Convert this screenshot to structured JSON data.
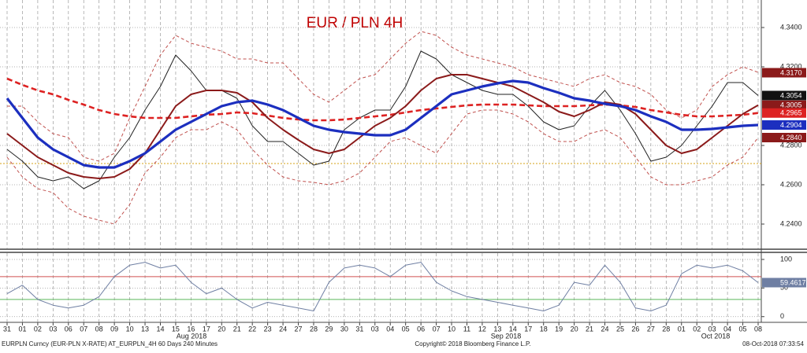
{
  "chart_data": [
    {
      "type": "line",
      "title": "EUR / PLN 4H",
      "categories": [
        "31",
        "01",
        "02",
        "03",
        "06",
        "07",
        "08",
        "09",
        "10",
        "13",
        "14",
        "15",
        "16",
        "17",
        "20",
        "21",
        "22",
        "23",
        "24",
        "27",
        "28",
        "29",
        "30",
        "31",
        "03",
        "04",
        "05",
        "06",
        "07",
        "10",
        "11",
        "12",
        "13",
        "14",
        "17",
        "18",
        "19",
        "20",
        "21",
        "24",
        "25",
        "26",
        "27",
        "28",
        "01",
        "02",
        "03",
        "04",
        "05",
        "08"
      ],
      "months": [
        "Aug 2018",
        "Sep 2018",
        "Oct 2018"
      ],
      "ylim": [
        4.2276,
        4.354
      ],
      "yticks": [
        {
          "value": 4.24,
          "label": "4.2400"
        },
        {
          "value": 4.26,
          "label": "4.2600"
        },
        {
          "value": 4.28,
          "label": "4.2800"
        },
        {
          "value": 4.32,
          "label": "4.3200"
        },
        {
          "value": 4.34,
          "label": "4.3400"
        }
      ],
      "grid": true,
      "hline": {
        "value": 4.2708,
        "color": "#d4a017"
      },
      "series": [
        {
          "color": "#c0504d",
          "line_style": "dotted-band",
          "values": [
            4.3,
            4.3,
            4.292,
            4.286,
            4.284,
            4.274,
            4.272,
            4.276,
            4.294,
            4.31,
            4.326,
            4.336,
            4.332,
            4.33,
            4.328,
            4.324,
            4.324,
            4.322,
            4.322,
            4.314,
            4.306,
            4.302,
            4.308,
            4.314,
            4.316,
            4.324,
            4.332,
            4.338,
            4.336,
            4.33,
            4.326,
            4.324,
            4.322,
            4.32,
            4.316,
            4.314,
            4.312,
            4.31,
            4.314,
            4.316,
            4.312,
            4.31,
            4.306,
            4.298,
            4.294,
            4.298,
            4.31,
            4.316,
            4.32,
            4.3172
          ]
        },
        {
          "color": "#c0504d",
          "line_style": "dotted-band",
          "values": [
            4.274,
            4.264,
            4.258,
            4.256,
            4.248,
            4.244,
            4.242,
            4.24,
            4.25,
            4.266,
            4.274,
            4.284,
            4.288,
            4.288,
            4.292,
            4.288,
            4.278,
            4.27,
            4.264,
            4.262,
            4.2612,
            4.26,
            4.262,
            4.266,
            4.274,
            4.282,
            4.284,
            4.28,
            4.276,
            4.286,
            4.296,
            4.298,
            4.298,
            4.296,
            4.292,
            4.286,
            4.282,
            4.282,
            4.286,
            4.288,
            4.284,
            4.274,
            4.264,
            4.26,
            4.26,
            4.262,
            4.264,
            4.27,
            4.274,
            4.284
          ]
        },
        {
          "color": "#222222",
          "line_style": "thin",
          "values": [
            4.278,
            4.272,
            4.264,
            4.262,
            4.264,
            4.258,
            4.262,
            4.274,
            4.284,
            4.298,
            4.31,
            4.326,
            4.318,
            4.308,
            4.308,
            4.304,
            4.29,
            4.282,
            4.282,
            4.276,
            4.27,
            4.272,
            4.288,
            4.294,
            4.298,
            4.298,
            4.31,
            4.328,
            4.324,
            4.316,
            4.312,
            4.308,
            4.306,
            4.306,
            4.3,
            4.292,
            4.288,
            4.29,
            4.3,
            4.308,
            4.298,
            4.286,
            4.272,
            4.274,
            4.28,
            4.29,
            4.3,
            4.312,
            4.312,
            4.3054
          ]
        },
        {
          "color": "#dd2222",
          "line_style": "dashed",
          "values": [
            4.314,
            4.3108,
            4.308,
            4.306,
            4.3032,
            4.3008,
            4.298,
            4.296,
            4.2948,
            4.294,
            4.294,
            4.294,
            4.2948,
            4.2956,
            4.296,
            4.2968,
            4.2964,
            4.2952,
            4.294,
            4.2932,
            4.2928,
            4.2928,
            4.2932,
            4.294,
            4.2948,
            4.2956,
            4.2968,
            4.298,
            4.2988,
            4.2996,
            4.3004,
            4.3008,
            4.3008,
            4.3008,
            4.3004,
            4.3,
            4.3,
            4.3,
            4.3004,
            4.3008,
            4.3004,
            4.2996,
            4.298,
            4.2968,
            4.2956,
            4.2948,
            4.2948,
            4.2952,
            4.2956,
            4.2965
          ]
        },
        {
          "color": "#8b1a1a",
          "line_style": "medium",
          "values": [
            4.286,
            4.28,
            4.274,
            4.27,
            4.266,
            4.264,
            4.2632,
            4.264,
            4.268,
            4.276,
            4.288,
            4.3,
            4.306,
            4.308,
            4.308,
            4.3068,
            4.302,
            4.294,
            4.288,
            4.2828,
            4.278,
            4.276,
            4.278,
            4.284,
            4.29,
            4.294,
            4.3,
            4.308,
            4.314,
            4.316,
            4.316,
            4.314,
            4.312,
            4.31,
            4.306,
            4.302,
            4.2972,
            4.2948,
            4.298,
            4.302,
            4.3008,
            4.296,
            4.288,
            4.28,
            4.276,
            4.278,
            4.284,
            4.29,
            4.296,
            4.3005
          ]
        },
        {
          "color": "#1c2fbf",
          "line_style": "thick",
          "values": [
            4.304,
            4.294,
            4.284,
            4.278,
            4.274,
            4.27,
            4.2688,
            4.2688,
            4.272,
            4.276,
            4.282,
            4.288,
            4.292,
            4.296,
            4.3,
            4.302,
            4.3028,
            4.3008,
            4.298,
            4.294,
            4.29,
            4.288,
            4.2868,
            4.286,
            4.2852,
            4.2852,
            4.288,
            4.294,
            4.3,
            4.306,
            4.308,
            4.31,
            4.3116,
            4.3128,
            4.312,
            4.3092,
            4.3068,
            4.304,
            4.3028,
            4.3012,
            4.3,
            4.298,
            4.2948,
            4.292,
            4.288,
            4.288,
            4.2884,
            4.2892,
            4.29,
            4.2904
          ]
        }
      ],
      "tags": [
        {
          "value": 4.317,
          "label": "4.3170",
          "color": "#8b1a1a"
        },
        {
          "value": 4.3054,
          "label": "4.3054",
          "color": "#111111"
        },
        {
          "value": 4.3005,
          "label": "4.3005",
          "color": "#8b1a1a"
        },
        {
          "value": 4.2965,
          "label": "4.2965",
          "color": "#dd2222"
        },
        {
          "value": 4.2904,
          "label": "4.2904",
          "color": "#1c2fbf"
        },
        {
          "value": 4.284,
          "label": "4.2840",
          "color": "#8b1a1a"
        }
      ]
    },
    {
      "type": "line",
      "ylim": [
        -10,
        111
      ],
      "yticks": [
        0,
        50,
        100
      ],
      "grid": true,
      "ref_lines": [
        {
          "value": 70,
          "color": "#d05050"
        },
        {
          "value": 30,
          "color": "#5cb85c"
        }
      ],
      "series": [
        {
          "color": "#6f7fa3",
          "line_style": "thin",
          "values": [
            40,
            55,
            30,
            20,
            15,
            20,
            35,
            70,
            90,
            95,
            85,
            90,
            60,
            40,
            50,
            30,
            15,
            25,
            20,
            15,
            10,
            60,
            85,
            90,
            85,
            70,
            90,
            95,
            60,
            45,
            35,
            30,
            25,
            20,
            15,
            10,
            20,
            60,
            55,
            90,
            60,
            15,
            10,
            20,
            75,
            90,
            85,
            90,
            80,
            59.4617
          ]
        }
      ],
      "tags": [
        {
          "value": 59.4617,
          "label": "59.4617",
          "color": "#6f7fa3"
        }
      ]
    },
    {
      "type": "footer",
      "left": "EURPLN Curncy (EUR-PLN X-RATE) AT_EURPLN_4H 60 Days 240 Minutes",
      "center": "Copyright© 2018 Bloomberg Finance L.P.",
      "right": "08-Oct-2018 07:33:54"
    }
  ]
}
